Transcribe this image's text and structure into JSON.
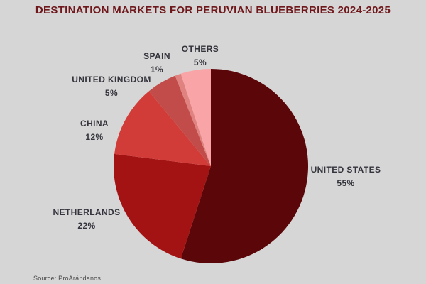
{
  "title": "DESTINATION MARKETS FOR PERUVIAN BLUEBERRIES 2024-2025",
  "source": "Source: ProArándanos",
  "colors": {
    "background": "#d7d6d6",
    "title_text": "#6f181c",
    "label_text": "#33343c"
  },
  "chart_data": {
    "type": "pie",
    "title": "DESTINATION MARKETS FOR PERUVIAN BLUEBERRIES 2024-2025",
    "start_angle_deg_from_top": 0,
    "direction": "clockwise",
    "legend_position": "labels-around-pie",
    "slices": [
      {
        "label": "UNITED STATES",
        "value": 55,
        "value_label": "55%",
        "color": "#5b0709"
      },
      {
        "label": "NETHERLANDS",
        "value": 22,
        "value_label": "22%",
        "color": "#a31313"
      },
      {
        "label": "CHINA",
        "value": 12,
        "value_label": "12%",
        "color": "#d23c38"
      },
      {
        "label": "UNITED KINGDOM",
        "value": 5,
        "value_label": "5%",
        "color": "#c24c49"
      },
      {
        "label": "SPAIN",
        "value": 1,
        "value_label": "1%",
        "color": "#e08380"
      },
      {
        "label": "OTHERS",
        "value": 5,
        "value_label": "5%",
        "color": "#f9a4a6"
      }
    ]
  }
}
